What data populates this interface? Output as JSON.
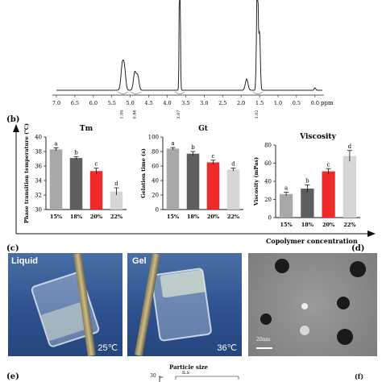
{
  "chart_data": [
    {
      "type": "line",
      "panel": "",
      "xlabel": "ppm",
      "xlim": [
        7.0,
        -0.2
      ],
      "ticks": [
        "7.0",
        "6.5",
        "6.0",
        "5.5",
        "5.0",
        "4.5",
        "4.0",
        "3.5",
        "3.0",
        "2.5",
        "2.0",
        "1.5",
        "1.0",
        "0.5",
        "0.0"
      ],
      "peaks_ppm": [
        5.2,
        4.85,
        3.65,
        1.85,
        1.55,
        0.0
      ],
      "integrals": [
        "1.00",
        "0.86",
        "3.07",
        "3.02"
      ]
    },
    {
      "type": "bar",
      "panel": "(b)",
      "title": "Tm",
      "ylabel": "Phase transition temperature (℃)",
      "categories": [
        "15%",
        "18%",
        "20%",
        "22%"
      ],
      "values": [
        38.3,
        37.1,
        35.3,
        32.5
      ],
      "errors": [
        0.2,
        0.2,
        0.4,
        0.5
      ],
      "letters": [
        "a",
        "b",
        "c",
        "d"
      ],
      "ylim": [
        30,
        40
      ],
      "yticks": [
        "30",
        "32",
        "34",
        "36",
        "38",
        "40"
      ],
      "colors": [
        "#a8a8a8",
        "#5e5e5e",
        "#ee2a2a",
        "#d6d6d6"
      ]
    },
    {
      "type": "bar",
      "panel": "",
      "title": "Gt",
      "ylabel": "Gelation time (s)",
      "categories": [
        "15%",
        "18%",
        "20%",
        "22%"
      ],
      "values": [
        84,
        77,
        65,
        55
      ],
      "errors": [
        1.5,
        3,
        3,
        2
      ],
      "letters": [
        "a",
        "b",
        "c",
        "d"
      ],
      "ylim": [
        0,
        100
      ],
      "yticks": [
        "0",
        "20",
        "40",
        "60",
        "80",
        "100"
      ],
      "colors": [
        "#a8a8a8",
        "#5e5e5e",
        "#ee2a2a",
        "#d6d6d6"
      ]
    },
    {
      "type": "bar",
      "panel": "",
      "title": "Viscosity",
      "ylabel": "Viscosity (mPas)",
      "categories": [
        "15%",
        "18%",
        "20%",
        "22%"
      ],
      "values": [
        26,
        32,
        51,
        68
      ],
      "errors": [
        2,
        4,
        3,
        6
      ],
      "letters": [
        "a",
        "b",
        "c",
        "d"
      ],
      "ylim": [
        0,
        80
      ],
      "yticks": [
        "0",
        "20",
        "40",
        "60",
        "80"
      ],
      "colors": [
        "#a8a8a8",
        "#5e5e5e",
        "#ee2a2a",
        "#d6d6d6"
      ],
      "xlabel": "Copolymer concentration"
    },
    {
      "type": "bar",
      "panel": "(e)",
      "title": "Particle size",
      "annotation": "n.s",
      "ytick_top": "30",
      "side_panel": "(f)"
    }
  ],
  "photos": {
    "c_label": "(c)",
    "d_label": "(d)",
    "liquid": "Liquid",
    "gel": "Gel",
    "temp_low": "25℃",
    "temp_high": "36℃",
    "scale": "20nm"
  }
}
